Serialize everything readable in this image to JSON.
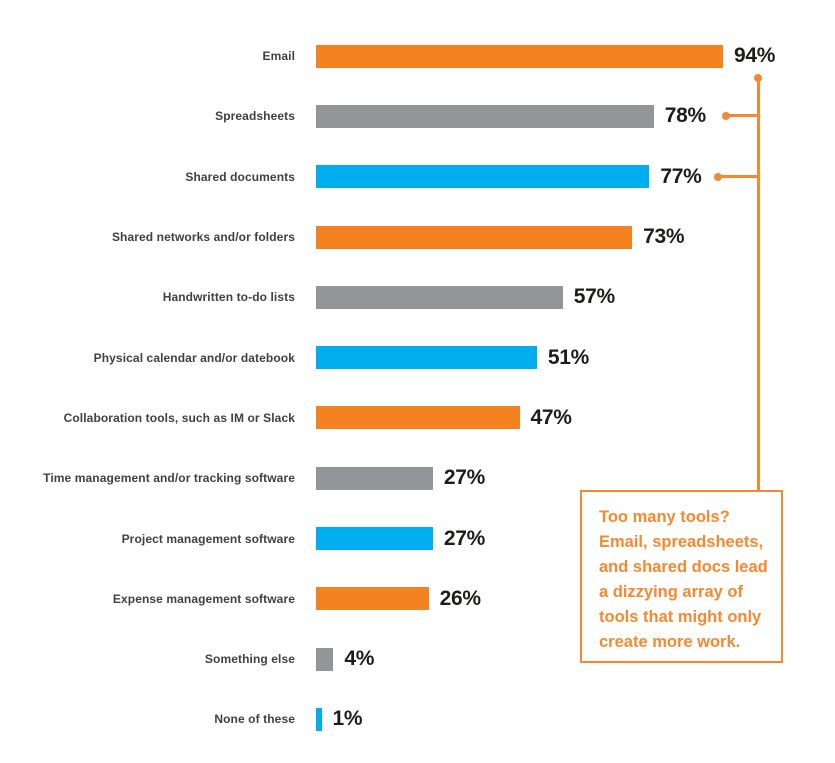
{
  "colors": {
    "background": "#FFFFFF",
    "orange": "#F58220",
    "gray": "#939598",
    "blue": "#00AEEF",
    "connector": "#F6892F",
    "label_text": "#414042",
    "value_text": "#1D1D1B"
  },
  "chart_data": {
    "type": "bar",
    "orientation": "horizontal",
    "unit": "%",
    "title": "",
    "xlabel": "",
    "ylabel": "",
    "xlim": [
      0,
      100
    ],
    "grid": false,
    "legend": "none",
    "categories": [
      "Email",
      "Spreadsheets",
      "Shared documents",
      "Shared networks and/or folders",
      "Handwritten to-do lists",
      "Physical calendar and/or datebook",
      "Collaboration tools, such as IM or Slack",
      "Time management and/or tracking software",
      "Project management software",
      "Expense management software",
      "Something else",
      "None of these"
    ],
    "values": [
      94,
      78,
      77,
      73,
      57,
      51,
      47,
      27,
      27,
      26,
      4,
      1
    ],
    "value_labels": [
      "94%",
      "78%",
      "77%",
      "73%",
      "57%",
      "51%",
      "47%",
      "27%",
      "27%",
      "26%",
      "4%",
      "1%"
    ],
    "bar_colors": [
      "orange",
      "gray",
      "blue",
      "orange",
      "gray",
      "blue",
      "orange",
      "gray",
      "blue",
      "orange",
      "gray",
      "blue"
    ]
  },
  "annotation": {
    "lines": [
      "Too many tools?",
      "Email, spreadsheets,",
      "and shared docs lead",
      "a dizzying array of",
      "tools that might only",
      "create more work."
    ],
    "connected_bars": [
      "Email",
      "Spreadsheets",
      "Shared documents"
    ]
  }
}
